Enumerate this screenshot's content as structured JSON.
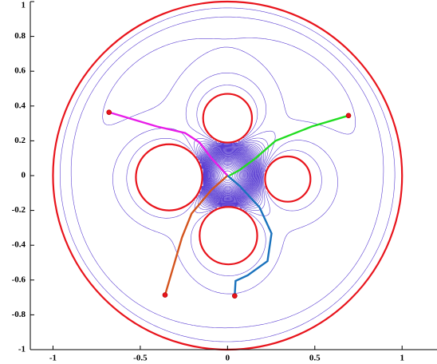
{
  "chart_data": {
    "type": "contour",
    "xlim": [
      -1.13,
      1.2
    ],
    "ylim": [
      -1,
      1
    ],
    "xticks": [
      -1,
      -0.5,
      0,
      0.5,
      1
    ],
    "yticks": [
      -1,
      -0.8,
      -0.6,
      -0.4,
      -0.2,
      0,
      0.2,
      0.4,
      0.6,
      0.8,
      1
    ],
    "boundary": {
      "cx": 0,
      "cy": 0,
      "r": 1
    },
    "obstacles": [
      {
        "cx": 0,
        "cy": 0.33,
        "r": 0.14
      },
      {
        "cx": -0.335,
        "cy": -0.01,
        "r": 0.19
      },
      {
        "cx": 0.345,
        "cy": -0.02,
        "r": 0.13
      },
      {
        "cx": 0.005,
        "cy": -0.345,
        "r": 0.165
      }
    ],
    "obstacle_color": "#e8141c",
    "contour_color": "#5b3fd2",
    "start_color": "#e8141c",
    "series": [
      {
        "color": "#e81ee8",
        "x": [
          -0.679,
          -0.404,
          -0.243,
          -0.161,
          -0.092,
          0
        ],
        "y": [
          0.364,
          0.282,
          0.245,
          0.191,
          0.1,
          0
        ]
      },
      {
        "color": "#22dd22",
        "x": [
          0.693,
          0.482,
          0.275,
          0.161,
          0.069,
          0.01
        ],
        "y": [
          0.345,
          0.282,
          0.2,
          0.1,
          0.032,
          0
        ]
      },
      {
        "color": "#d4541e",
        "x": [
          -0.358,
          -0.261,
          -0.206,
          -0.092,
          0
        ],
        "y": [
          -0.686,
          -0.355,
          -0.218,
          -0.082,
          0
        ]
      },
      {
        "color": "#1a72bd",
        "x": [
          0.041,
          0.046,
          0.115,
          0.229,
          0.252,
          0.183,
          0.069,
          0
        ],
        "y": [
          -0.691,
          -0.605,
          -0.573,
          -0.491,
          -0.332,
          -0.182,
          -0.059,
          0
        ]
      }
    ]
  }
}
